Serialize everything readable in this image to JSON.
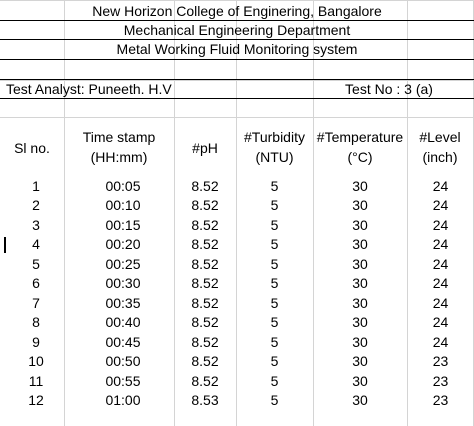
{
  "header": {
    "college": "New Horizon College of Enginering, Bangalore",
    "department": "Mechanical Engineering Department",
    "system": "Metal Working Fluid Monitoring system"
  },
  "info": {
    "analyst": "Test Analyst: Puneeth. H.V",
    "test_no": "Test No : 3 (a)"
  },
  "columns": [
    {
      "line1": "Sl no.",
      "line2": ""
    },
    {
      "line1": "Time stamp",
      "line2": "(HH:mm)"
    },
    {
      "line1": "#pH",
      "line2": ""
    },
    {
      "line1": "#Turbidity",
      "line2": "(NTU)"
    },
    {
      "line1": "#Temperature",
      "line2": "(°C)"
    },
    {
      "line1": "#Level",
      "line2": "(inch)"
    }
  ],
  "rows": [
    [
      "1",
      "00:05",
      "8.52",
      "5",
      "30",
      "24"
    ],
    [
      "2",
      "00:10",
      "8.52",
      "5",
      "30",
      "24"
    ],
    [
      "3",
      "00:15",
      "8.52",
      "5",
      "30",
      "24"
    ],
    [
      "4",
      "00:20",
      "8.52",
      "5",
      "30",
      "24"
    ],
    [
      "5",
      "00:25",
      "8.52",
      "5",
      "30",
      "24"
    ],
    [
      "6",
      "00:30",
      "8.52",
      "5",
      "30",
      "24"
    ],
    [
      "7",
      "00:35",
      "8.52",
      "5",
      "30",
      "24"
    ],
    [
      "8",
      "00:40",
      "8.52",
      "5",
      "30",
      "24"
    ],
    [
      "9",
      "00:45",
      "8.52",
      "5",
      "30",
      "24"
    ],
    [
      "10",
      "00:50",
      "8.52",
      "5",
      "30",
      "23"
    ],
    [
      "11",
      "00:55",
      "8.52",
      "5",
      "30",
      "23"
    ],
    [
      "12",
      "01:00",
      "8.53",
      "5",
      "30",
      "23"
    ]
  ]
}
